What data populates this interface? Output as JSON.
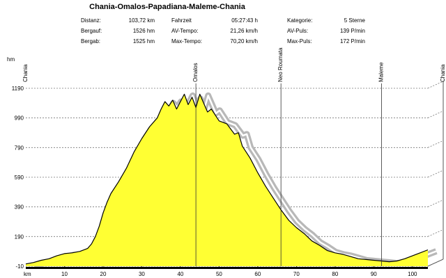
{
  "title": "Chania-Omalos-Papadiana-Maleme-Chania",
  "stats": {
    "col1": [
      {
        "label": "Distanz:",
        "value": "103,72 km"
      },
      {
        "label": "Bergauf:",
        "value": "1526 hm"
      },
      {
        "label": "Bergab:",
        "value": "1525 hm"
      }
    ],
    "col2": [
      {
        "label": "Fahrzeit",
        "value": "05:27:43 h"
      },
      {
        "label": "AV-Tempo:",
        "value": "21,26 km/h"
      },
      {
        "label": "Max-Tempo:",
        "value": "70,20 km/h"
      }
    ],
    "col3": [
      {
        "label": "Kategorie:",
        "value": "5 Sterne"
      },
      {
        "label": "AV-Puls:",
        "value": "139 P/min"
      },
      {
        "label": "Max-Puls:",
        "value": "172 P/min"
      }
    ]
  },
  "colors": {
    "fill": "#ffff33",
    "outline": "#000000",
    "shadow": "#b8b8b8",
    "grid": "#777777",
    "bar": "#000000"
  },
  "chart_data": {
    "type": "area",
    "ylabel": "hm",
    "xlabel": "km",
    "xlim": [
      0,
      104
    ],
    "ylim": [
      -10,
      1190
    ],
    "yticks": [
      -10,
      190,
      390,
      590,
      790,
      990,
      1190
    ],
    "ytick_labels": [
      "-10",
      "190",
      "390",
      "590",
      "790",
      "990",
      "1190"
    ],
    "xticks": [
      10,
      20,
      30,
      40,
      50,
      60,
      70,
      80,
      90,
      100
    ],
    "xtick_labels": [
      "10",
      "20",
      "30",
      "40",
      "50",
      "60",
      "70",
      "80",
      "90",
      "100"
    ],
    "grid": true,
    "waypoints": [
      {
        "name": "Chania",
        "km": 0
      },
      {
        "name": "Omalos",
        "km": 44
      },
      {
        "name": "Neo Roumata",
        "km": 66
      },
      {
        "name": "Maleme",
        "km": 92
      },
      {
        "name": "Chania",
        "km": 104
      }
    ],
    "x": [
      0,
      2,
      4,
      6,
      8,
      10,
      12,
      14,
      16,
      17,
      18,
      19,
      20,
      21,
      22,
      24,
      26,
      28,
      30,
      32,
      34,
      35,
      36,
      37,
      38,
      39,
      40,
      41,
      42,
      43,
      44,
      45,
      46,
      47,
      48,
      50,
      52,
      54,
      55,
      56,
      58,
      60,
      62,
      64,
      66,
      68,
      70,
      72,
      74,
      76,
      78,
      80,
      82,
      84,
      86,
      88,
      90,
      92,
      94,
      96,
      98,
      100,
      102,
      104
    ],
    "y": [
      5,
      15,
      30,
      40,
      60,
      75,
      80,
      90,
      110,
      140,
      190,
      260,
      350,
      420,
      480,
      560,
      650,
      760,
      850,
      930,
      990,
      1050,
      1100,
      1070,
      1110,
      1050,
      1100,
      1150,
      1080,
      1130,
      1060,
      1150,
      1090,
      1030,
      1050,
      970,
      950,
      880,
      890,
      800,
      720,
      620,
      530,
      450,
      370,
      300,
      250,
      210,
      160,
      130,
      95,
      80,
      70,
      55,
      40,
      35,
      30,
      25,
      20,
      25,
      40,
      60,
      80,
      100
    ]
  }
}
